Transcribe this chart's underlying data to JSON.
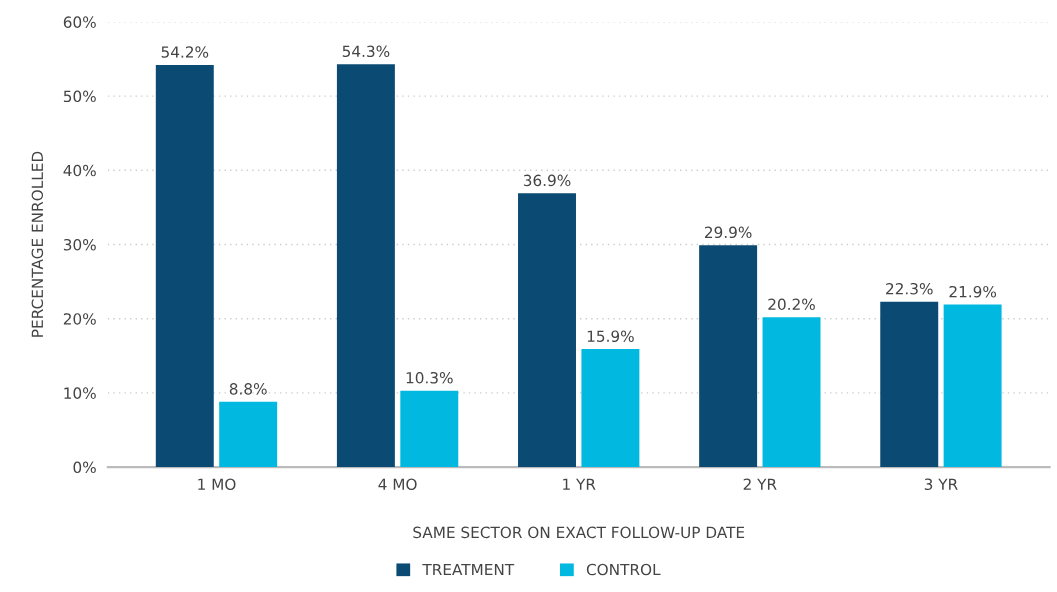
{
  "chart_data": {
    "type": "bar",
    "xlabel": "SAME SECTOR ON EXACT FOLLOW-UP DATE",
    "ylabel": "PERCENTAGE ENROLLED",
    "categories": [
      "1 MO",
      "4 MO",
      "1 YR",
      "2 YR",
      "3 YR"
    ],
    "series": [
      {
        "name": "TREATMENT",
        "color": "#0b4a73",
        "values": [
          54.2,
          54.3,
          36.9,
          29.9,
          22.3
        ],
        "value_labels": [
          "54.2%",
          "54.3%",
          "36.9%",
          "29.9%",
          "22.3%"
        ]
      },
      {
        "name": "CONTROL",
        "color": "#00b8e0",
        "values": [
          8.8,
          10.3,
          15.9,
          20.2,
          21.9
        ],
        "value_labels": [
          "8.8%",
          "10.3%",
          "15.9%",
          "20.2%",
          "21.9%"
        ]
      }
    ],
    "ylim": [
      0,
      60
    ],
    "yticks": [
      {
        "value": 0,
        "label": "0%"
      },
      {
        "value": 10,
        "label": "10%"
      },
      {
        "value": 20,
        "label": "20%"
      },
      {
        "value": 30,
        "label": "30%"
      },
      {
        "value": 40,
        "label": "40%"
      },
      {
        "value": 50,
        "label": "50%"
      },
      {
        "value": 60,
        "label": "60%"
      }
    ],
    "grid": "y",
    "legend": "bottom"
  }
}
